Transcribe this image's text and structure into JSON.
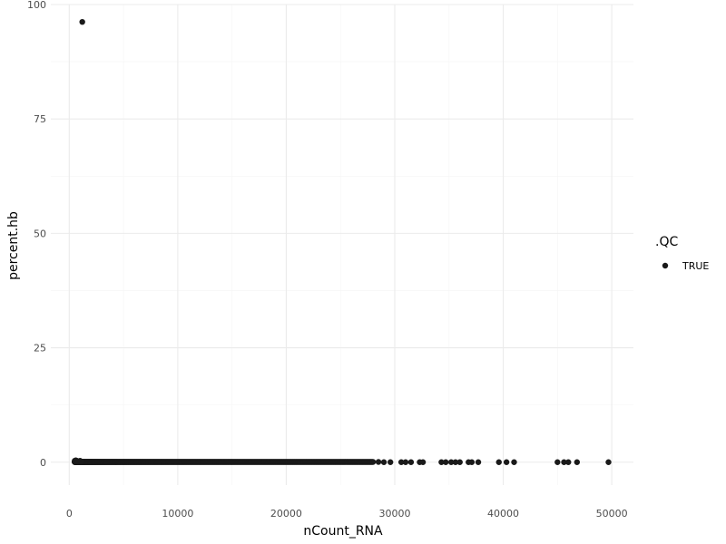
{
  "chart_data": {
    "type": "scatter",
    "title": "",
    "xlabel": "nCount_RNA",
    "ylabel": "percent.hb",
    "xlim": [
      -1700,
      52000
    ],
    "ylim": [
      -5,
      100
    ],
    "x_ticks": [
      0,
      10000,
      20000,
      30000,
      40000,
      50000
    ],
    "x_tick_labels": [
      "0",
      "10000",
      "20000",
      "30000",
      "40000",
      "50000"
    ],
    "y_ticks": [
      0,
      25,
      50,
      75,
      100
    ],
    "y_tick_labels": [
      "0",
      "25",
      "50",
      "75",
      "100"
    ],
    "grid": true,
    "legend": {
      "title": ".QC",
      "position": "right",
      "entries": [
        "TRUE"
      ]
    },
    "colors": {
      "point": "#1a1a1a",
      "grid_major": "#ebebeb",
      "grid_minor": "#f5f5f5"
    },
    "series": [
      {
        "name": "TRUE",
        "points": [
          [
            1200,
            96.2
          ],
          [
            500,
            0.3
          ],
          [
            520,
            0.1
          ],
          [
            560,
            0.2
          ],
          [
            600,
            0.4
          ],
          [
            650,
            0.2
          ],
          [
            700,
            0.3
          ],
          [
            800,
            0.1
          ],
          [
            900,
            0.2
          ],
          [
            1000,
            0.3
          ],
          [
            1100,
            0.1
          ],
          [
            28500,
            0.05
          ],
          [
            29000,
            0
          ],
          [
            29600,
            0
          ],
          [
            30600,
            0
          ],
          [
            31000,
            0
          ],
          [
            31500,
            0
          ],
          [
            32300,
            0
          ],
          [
            32600,
            0
          ],
          [
            34300,
            0
          ],
          [
            34700,
            0
          ],
          [
            35200,
            0
          ],
          [
            35600,
            0
          ],
          [
            36000,
            0
          ],
          [
            36800,
            0
          ],
          [
            37100,
            0
          ],
          [
            37700,
            0
          ],
          [
            39600,
            0
          ],
          [
            40300,
            0
          ],
          [
            41000,
            0
          ],
          [
            45000,
            0
          ],
          [
            45600,
            0
          ],
          [
            46000,
            0
          ],
          [
            46800,
            0
          ],
          [
            49700,
            0
          ]
        ],
        "dense_band": {
          "x_from": 500,
          "x_to": 28000,
          "y": 0.05,
          "n": 700
        }
      }
    ]
  }
}
